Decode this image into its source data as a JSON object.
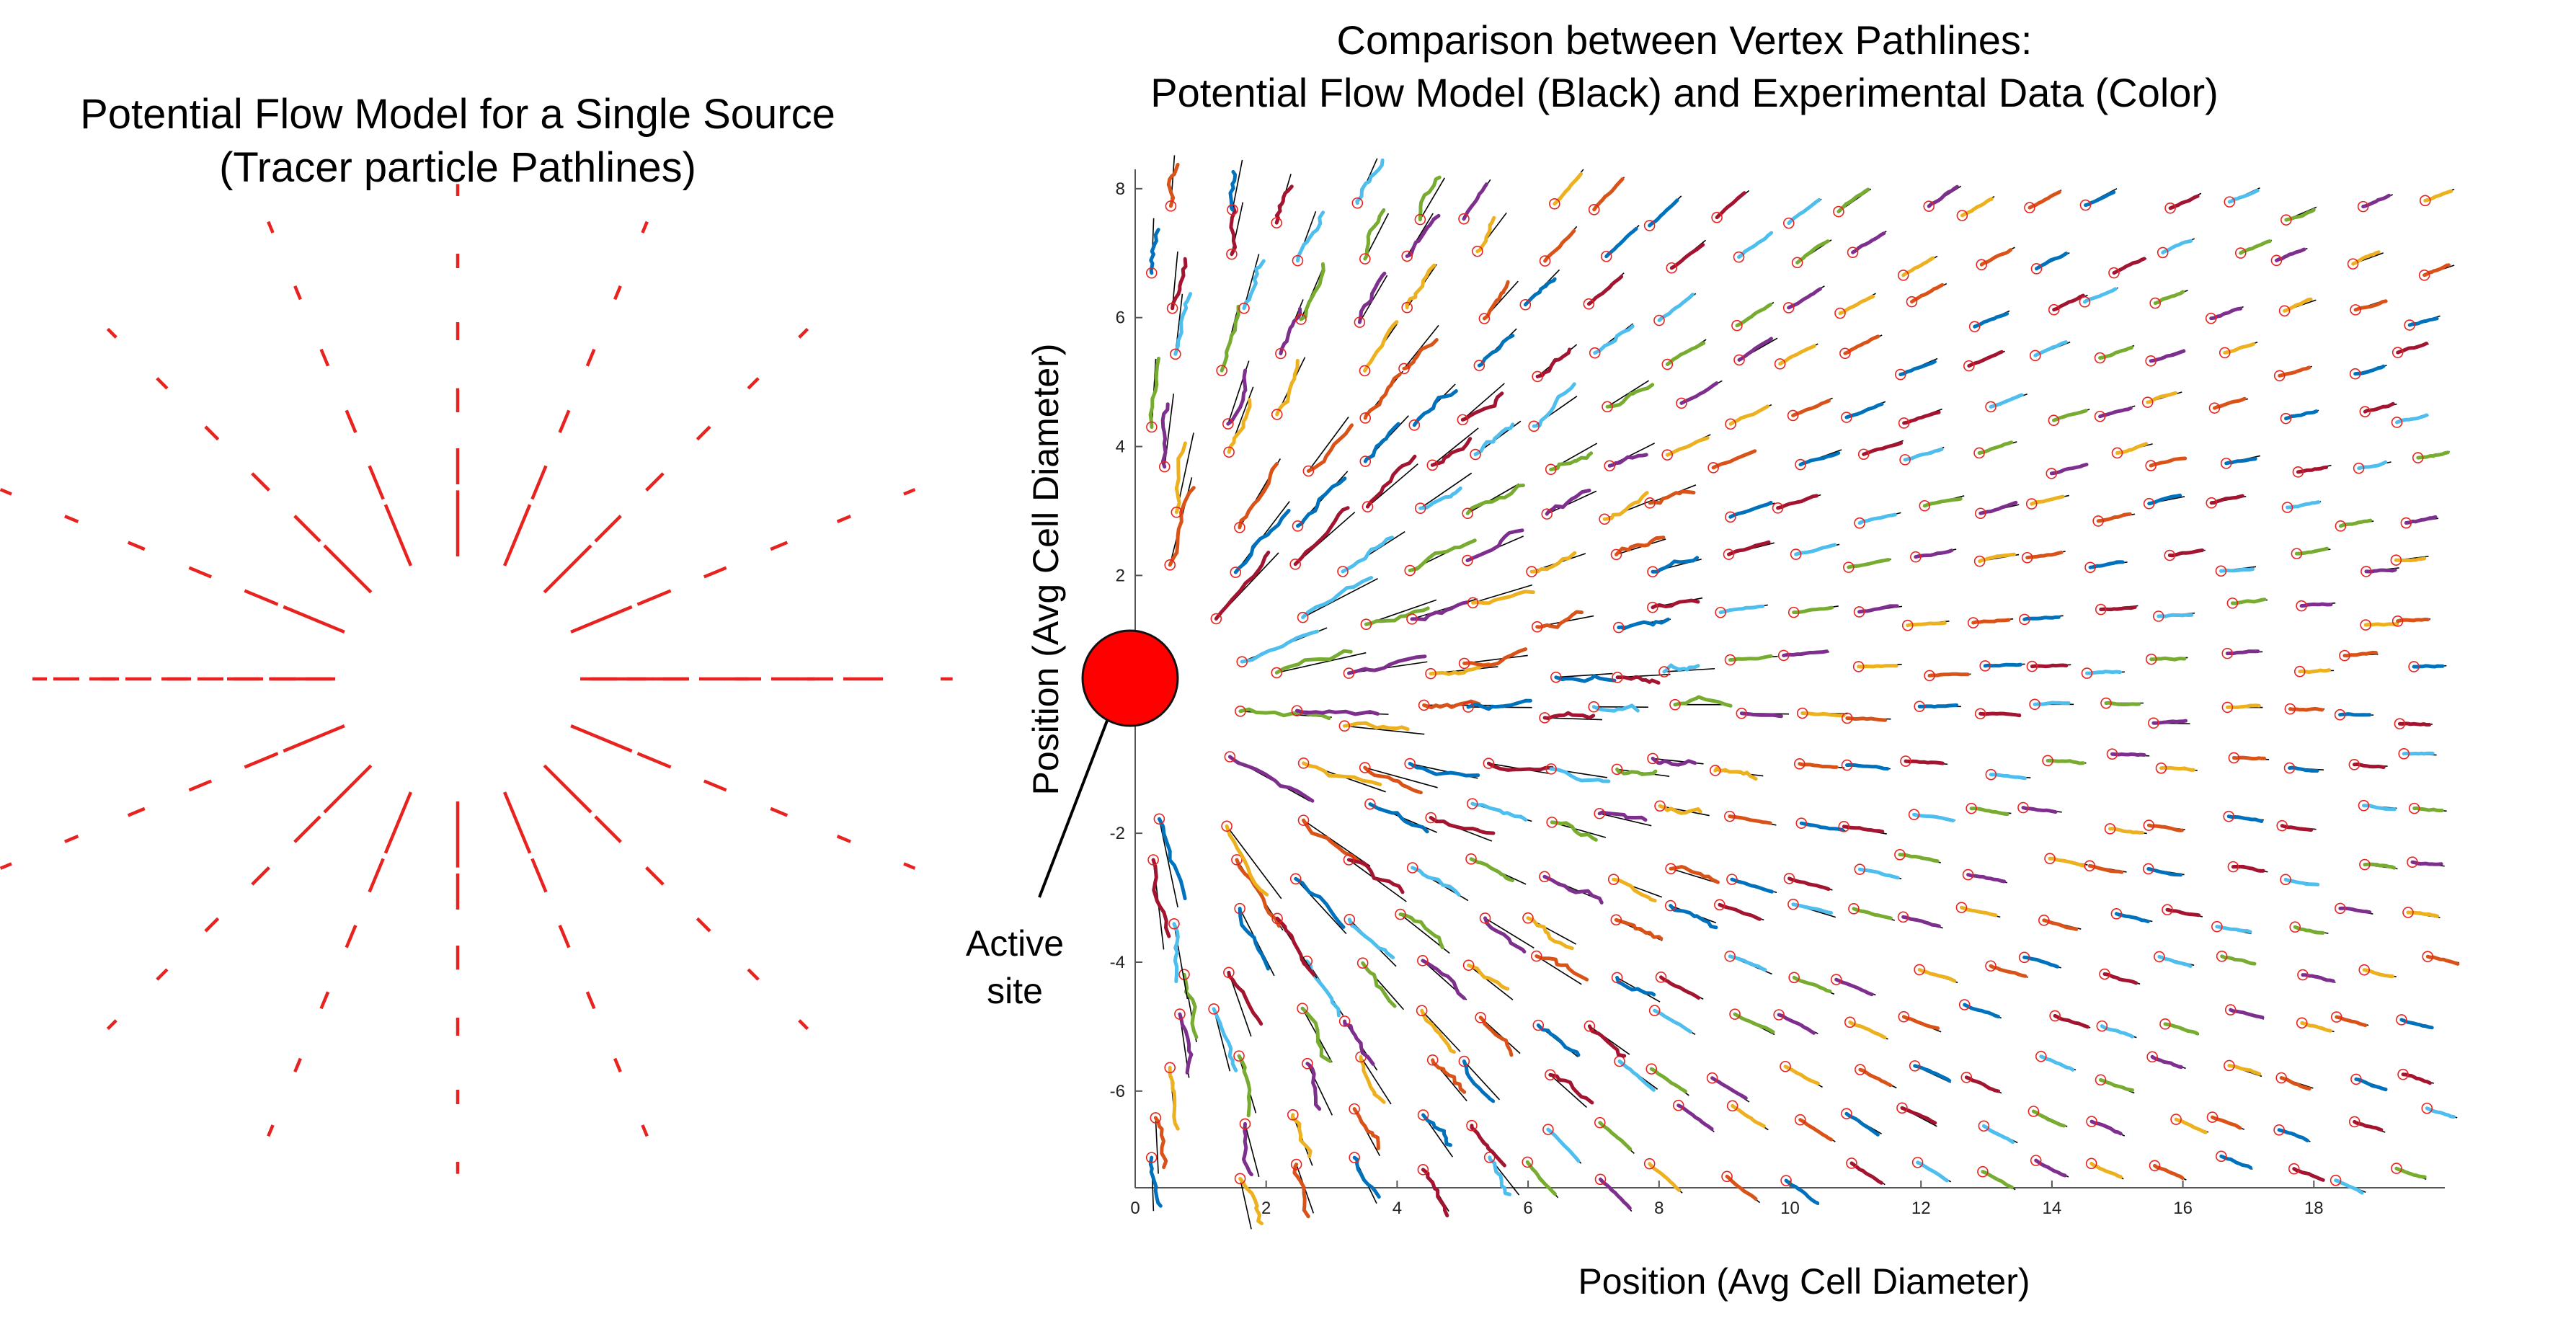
{
  "chart_data": [
    {
      "type": "vector-field",
      "title": [
        "Potential Flow Model for a Single Source",
        "(Tracer particle Pathlines)"
      ],
      "xlabel": "",
      "ylabel": "",
      "axes_visible": false,
      "source_position": [
        0,
        0
      ],
      "ring_radii": [
        1.0,
        2.0,
        3.0,
        4.0,
        5.0,
        6.0
      ],
      "directions_per_ring": 16,
      "series": [
        {
          "name": "Tracer particle pathlines",
          "color": "#e8231f"
        }
      ]
    },
    {
      "type": "scatter",
      "title": [
        "Comparison between Vertex Pathlines:",
        "Potential Flow Model (Black) and Experimental Data (Color)"
      ],
      "xlabel": "Position (Avg Cell Diameter)",
      "ylabel": "Position (Avg Cell Diameter)",
      "xlim": [
        0,
        20
      ],
      "ylim": [
        -7.5,
        8.3
      ],
      "xticks": [
        "0",
        "2",
        "4",
        "6",
        "8",
        "10",
        "12",
        "14",
        "16",
        "18"
      ],
      "yticks": [
        "-6",
        "-4",
        "-2",
        "0",
        "2",
        "4",
        "6",
        "8"
      ],
      "grid": false,
      "active_site": {
        "x": 0,
        "y": 0,
        "label_line1": "Active",
        "label_line2": "site",
        "color": "#ff0000"
      },
      "series": [
        {
          "name": "Potential flow model",
          "color": "#000000"
        },
        {
          "name": "Experimental data",
          "colors": [
            "#0072bd",
            "#d95319",
            "#edb120",
            "#7e2f8e",
            "#77ac30",
            "#4dbeee",
            "#a2142f"
          ]
        }
      ],
      "start_marker_color": "#e8231f"
    }
  ]
}
